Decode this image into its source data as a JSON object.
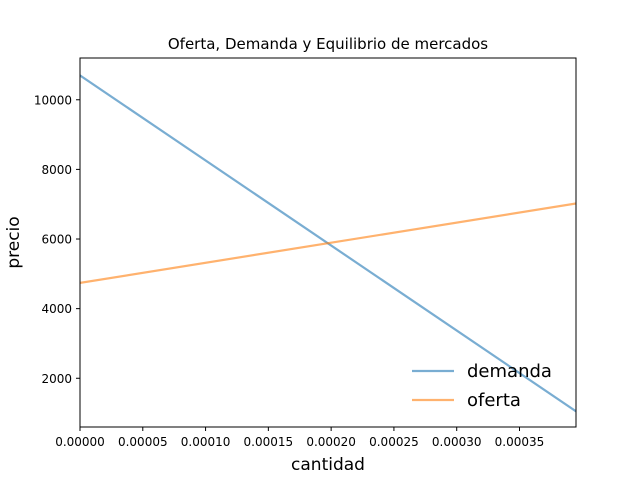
{
  "chart_data": {
    "type": "line",
    "title": "Oferta, Demanda y Equilibrio de mercados",
    "xlabel": "cantidad",
    "ylabel": "precio",
    "xlim": [
      0,
      0.000395
    ],
    "ylim": [
      600,
      11200
    ],
    "xticks": [
      0,
      5e-05,
      0.0001,
      0.00015,
      0.0002,
      0.00025,
      0.0003,
      0.00035
    ],
    "xtick_labels": [
      "0.00000",
      "0.00005",
      "0.00010",
      "0.00015",
      "0.00020",
      "0.00025",
      "0.00030",
      "0.00035"
    ],
    "yticks": [
      2000,
      4000,
      6000,
      8000,
      10000
    ],
    "ytick_labels": [
      "2000",
      "4000",
      "6000",
      "8000",
      "10000"
    ],
    "grid": false,
    "legend_position": "lower-right",
    "series": [
      {
        "name": "demanda",
        "color": "#1f77b4",
        "x": [
          0,
          0.000395
        ],
        "y": [
          10700,
          1050
        ]
      },
      {
        "name": "oferta",
        "color": "#ff7f0e",
        "x": [
          0,
          0.000395
        ],
        "y": [
          4740,
          7020
        ]
      }
    ]
  }
}
